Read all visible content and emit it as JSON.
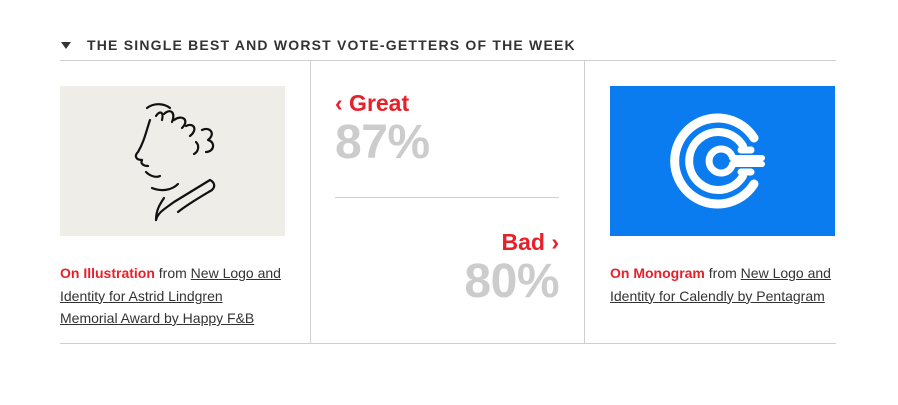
{
  "header": {
    "title": "THE SINGLE BEST AND WORST VOTE-GETTERS OF THE WEEK"
  },
  "left": {
    "category": "On Illustration",
    "from": "from",
    "project": "New Logo and Identity for Astrid Lindgren Memorial Award by Happy F&B"
  },
  "middle": {
    "great_label": "‹ Great",
    "great_pct": "87%",
    "bad_label": "Bad ›",
    "bad_pct": "80%"
  },
  "right": {
    "category": "On Monogram",
    "from": "from",
    "project": "New Logo and Identity for Calendly by Pentagram"
  },
  "colors": {
    "accent": "#e8202a",
    "muted": "#cccccc",
    "calendly_blue": "#0a7cf0"
  },
  "icons": [
    "collapse-triangle-icon",
    "astrid-lindgren-portrait",
    "calendly-logo-icon"
  ]
}
